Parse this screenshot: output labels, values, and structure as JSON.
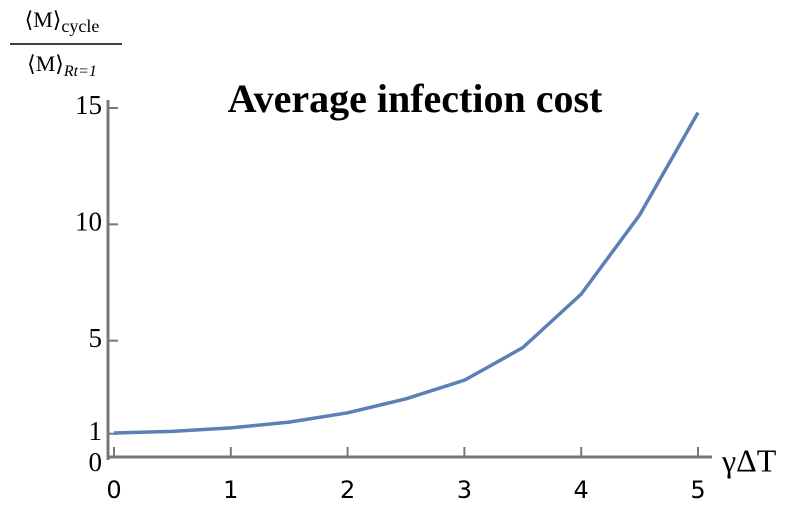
{
  "chart_data": {
    "type": "line",
    "title": "Average infection cost",
    "y_label": {
      "numerator": "⟨M⟩",
      "numerator_sub": "cycle",
      "denominator": "⟨M⟩",
      "denominator_sub": "Rt=1"
    },
    "x_label": "γΔT",
    "x": [
      0,
      0.5,
      1,
      1.5,
      2,
      2.5,
      3,
      3.5,
      4,
      4.5,
      5
    ],
    "series": [
      {
        "name": "average infection cost",
        "color": "#5a80b6",
        "values": [
          1.03,
          1.1,
          1.25,
          1.5,
          1.9,
          2.5,
          3.3,
          4.7,
          7.0,
          10.4,
          14.8
        ]
      }
    ],
    "xlim": [
      0,
      5
    ],
    "ylim": [
      0,
      15
    ],
    "xticks": [
      0,
      1,
      2,
      3,
      4,
      5
    ],
    "yticks": [
      0,
      1,
      5,
      10,
      15
    ]
  }
}
